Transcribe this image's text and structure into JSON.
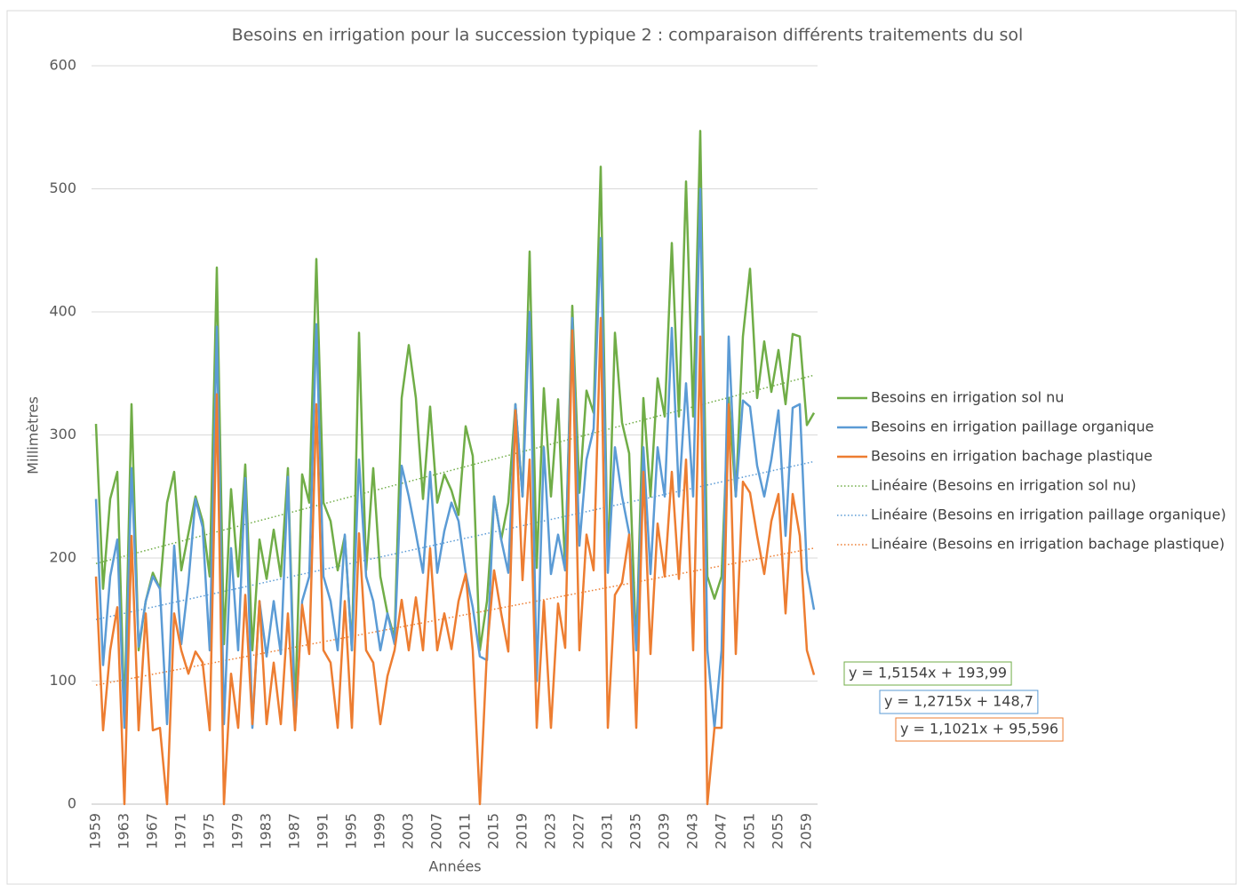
{
  "chart_data": {
    "type": "line",
    "title": "Besoins en irrigation pour la succession typique 2 : comparaison différents traitements du sol",
    "x_label": "Années",
    "y_label": "Millimètres",
    "ylim": [
      0,
      600
    ],
    "yticks": [
      0,
      100,
      200,
      300,
      400,
      500,
      600
    ],
    "grid": true,
    "legend": "right",
    "categories": [
      1959,
      null,
      null,
      null,
      1963,
      null,
      null,
      null,
      1967,
      null,
      null,
      null,
      1971,
      null,
      null,
      null,
      1975,
      null,
      null,
      null,
      1979,
      null,
      null,
      null,
      1983,
      null,
      null,
      null,
      1987,
      null,
      null,
      null,
      1991,
      null,
      null,
      null,
      1995,
      null,
      null,
      null,
      1999,
      null,
      null,
      null,
      2003,
      null,
      null,
      null,
      2007,
      null,
      null,
      null,
      2011,
      null,
      null,
      null,
      2015,
      null,
      null,
      null,
      2019,
      null,
      null,
      null,
      2023,
      null,
      null,
      null,
      2027,
      null,
      null,
      null,
      2031,
      null,
      null,
      null,
      2035,
      null,
      null,
      null,
      2039,
      null,
      null,
      null,
      2043,
      null,
      null,
      null,
      2047,
      null,
      null,
      null,
      2051,
      null,
      null,
      null,
      2055,
      null,
      null,
      null,
      2059,
      null
    ],
    "series": [
      {
        "name": "Besoins en irrigation sol nu",
        "color": "#70ad47",
        "values": [
          309,
          175,
          248,
          270,
          70,
          325,
          125,
          165,
          188,
          175,
          245,
          270,
          190,
          220,
          250,
          230,
          185,
          436,
          130,
          256,
          185,
          276,
          125,
          215,
          183,
          223,
          185,
          273,
          75,
          268,
          245,
          443,
          245,
          230,
          190,
          218,
          125,
          383,
          190,
          273,
          185,
          155,
          135,
          330,
          373,
          330,
          248,
          323,
          245,
          268,
          255,
          235,
          307,
          283,
          125,
          165,
          250,
          215,
          245,
          325,
          250,
          449,
          192,
          338,
          250,
          329,
          190,
          405,
          253,
          336,
          318,
          518,
          190,
          383,
          310,
          285,
          125,
          330,
          250,
          346,
          315,
          456,
          315,
          506,
          315,
          547,
          185,
          167,
          185,
          330,
          250,
          380,
          435,
          330,
          376,
          335,
          369,
          325,
          382,
          380,
          308,
          318
        ]
      },
      {
        "name": "Besoins en irrigation paillage organique",
        "color": "#5b9bd5",
        "values": [
          248,
          113,
          185,
          215,
          62,
          273,
          128,
          165,
          185,
          175,
          65,
          210,
          130,
          180,
          248,
          225,
          125,
          388,
          65,
          208,
          125,
          265,
          62,
          165,
          120,
          165,
          122,
          266,
          62,
          165,
          185,
          390,
          185,
          165,
          125,
          219,
          125,
          280,
          185,
          165,
          125,
          155,
          130,
          275,
          250,
          220,
          188,
          270,
          188,
          222,
          245,
          230,
          188,
          160,
          120,
          117,
          250,
          215,
          188,
          325,
          250,
          400,
          100,
          290,
          187,
          219,
          190,
          395,
          210,
          280,
          305,
          460,
          188,
          290,
          250,
          220,
          125,
          290,
          187,
          290,
          250,
          387,
          250,
          342,
          250,
          500,
          125,
          62,
          125,
          380,
          250,
          328,
          323,
          275,
          250,
          280,
          320,
          218,
          322,
          325,
          190,
          158
        ]
      },
      {
        "name": "Besoins en irrigation bachage plastique",
        "color": "#ed7d31",
        "values": [
          185,
          60,
          125,
          160,
          0,
          218,
          60,
          155,
          60,
          62,
          0,
          155,
          125,
          106,
          124,
          115,
          60,
          333,
          0,
          106,
          62,
          170,
          65,
          165,
          65,
          115,
          65,
          155,
          60,
          162,
          122,
          325,
          125,
          115,
          62,
          165,
          62,
          220,
          125,
          115,
          65,
          104,
          125,
          166,
          125,
          168,
          125,
          208,
          125,
          155,
          126,
          165,
          187,
          125,
          0,
          125,
          190,
          155,
          124,
          320,
          182,
          280,
          62,
          165,
          62,
          163,
          127,
          385,
          125,
          219,
          190,
          395,
          62,
          170,
          180,
          219,
          62,
          270,
          122,
          228,
          185,
          270,
          183,
          280,
          125,
          380,
          0,
          62,
          62,
          325,
          122,
          262,
          253,
          218,
          187,
          230,
          252,
          155,
          252,
          218,
          125,
          105
        ]
      }
    ],
    "trendlines": [
      {
        "name": "Linéaire (Besoins en irrigation sol nu)",
        "color": "#70ad47",
        "slope": 1.5154,
        "intercept": 193.99,
        "equation": "y = 1,5154x + 193,99"
      },
      {
        "name": "Linéaire (Besoins en irrigation paillage organique)",
        "color": "#5b9bd5",
        "slope": 1.2715,
        "intercept": 148.7,
        "equation": "y = 1,2715x + 148,7"
      },
      {
        "name": "Linéaire (Besoins en irrigation bachage plastique)",
        "color": "#ed7d31",
        "slope": 1.1021,
        "intercept": 95.596,
        "equation": "y = 1,1021x + 95,596"
      }
    ]
  }
}
